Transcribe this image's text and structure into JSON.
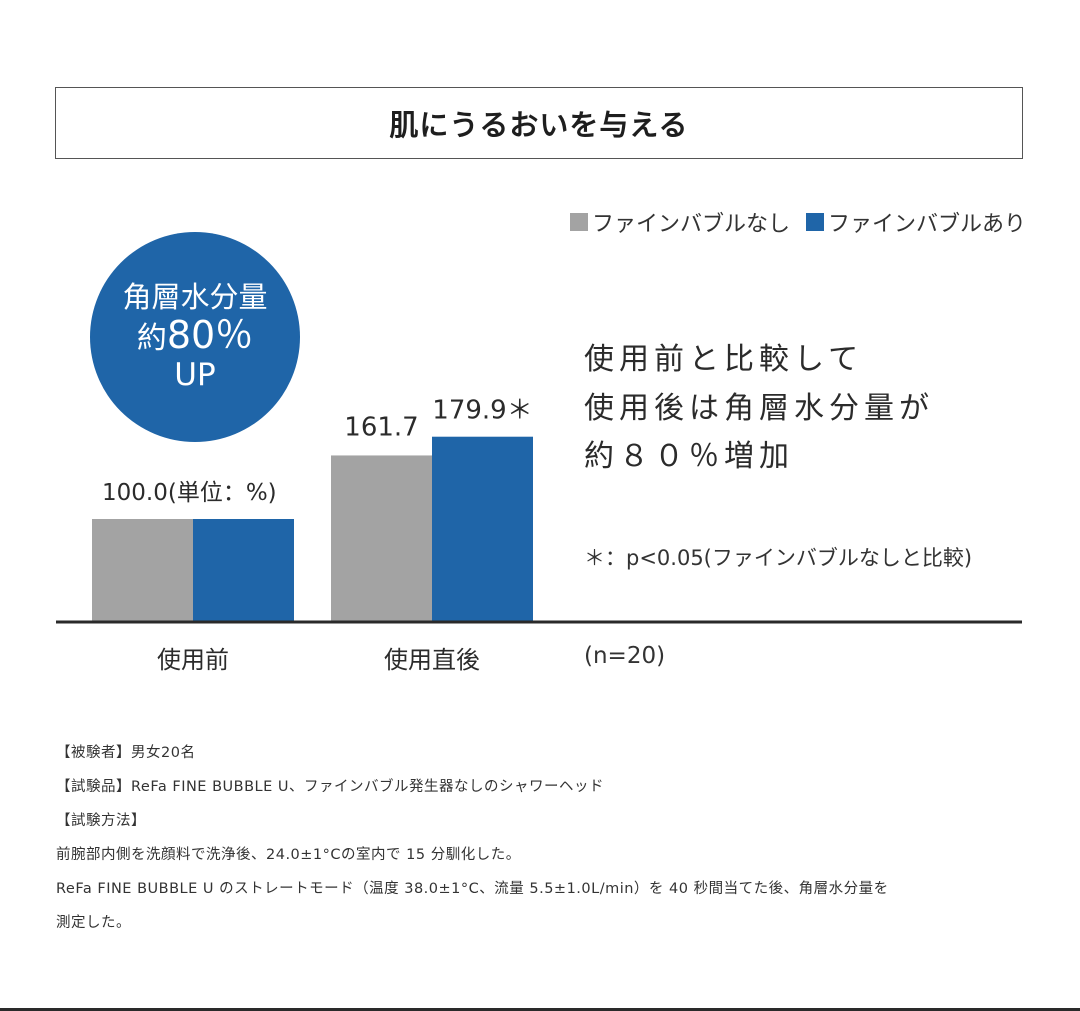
{
  "title": "肌にうるおいを与える",
  "badge": {
    "line1": "角層水分量",
    "line2_prefix": "約",
    "line2_value": "80％",
    "line3": "UP"
  },
  "legend": {
    "items": [
      {
        "label": "ファインバブルなし",
        "color": "#a3a3a3"
      },
      {
        "label": "ファインバブルあり",
        "color": "#1f65a8"
      }
    ]
  },
  "description": {
    "line1": "使用前と比較して",
    "line2": "使用後は角層水分量が",
    "line3": "約８０％増加"
  },
  "significance_note": "＊：p<0.05(ファインバブルなしと比較)",
  "sample_size": "(n=20)",
  "footnotes": [
    "【被験者】男女20名",
    "【試験品】ReFa FINE BUBBLE U、ファインバブル発生器なしのシャワーヘッド",
    "【試験方法】",
    "前腕部内側を洗顔料で洗浄後、24.0±1°Cの室内で 15 分馴化した。",
    "ReFa FINE BUBBLE U のストレートモード（温度 38.0±1°C、流量 5.5±1.0L/min）を 40 秒間当てた後、角層水分量を",
    "測定した。"
  ],
  "chart_data": {
    "type": "bar",
    "categories": [
      "使用前",
      "使用直後"
    ],
    "series": [
      {
        "name": "ファインバブルなし",
        "values": [
          100.0,
          161.7
        ],
        "color": "#a3a3a3"
      },
      {
        "name": "ファインバブルあり",
        "values": [
          100.0,
          179.9
        ],
        "color": "#1f65a8"
      }
    ],
    "data_labels": [
      "100.0(単位：%)",
      "161.7",
      "179.9＊"
    ],
    "unit": "%",
    "ylim": [
      0,
      200
    ],
    "grid": false,
    "legend_position": "top-right"
  }
}
